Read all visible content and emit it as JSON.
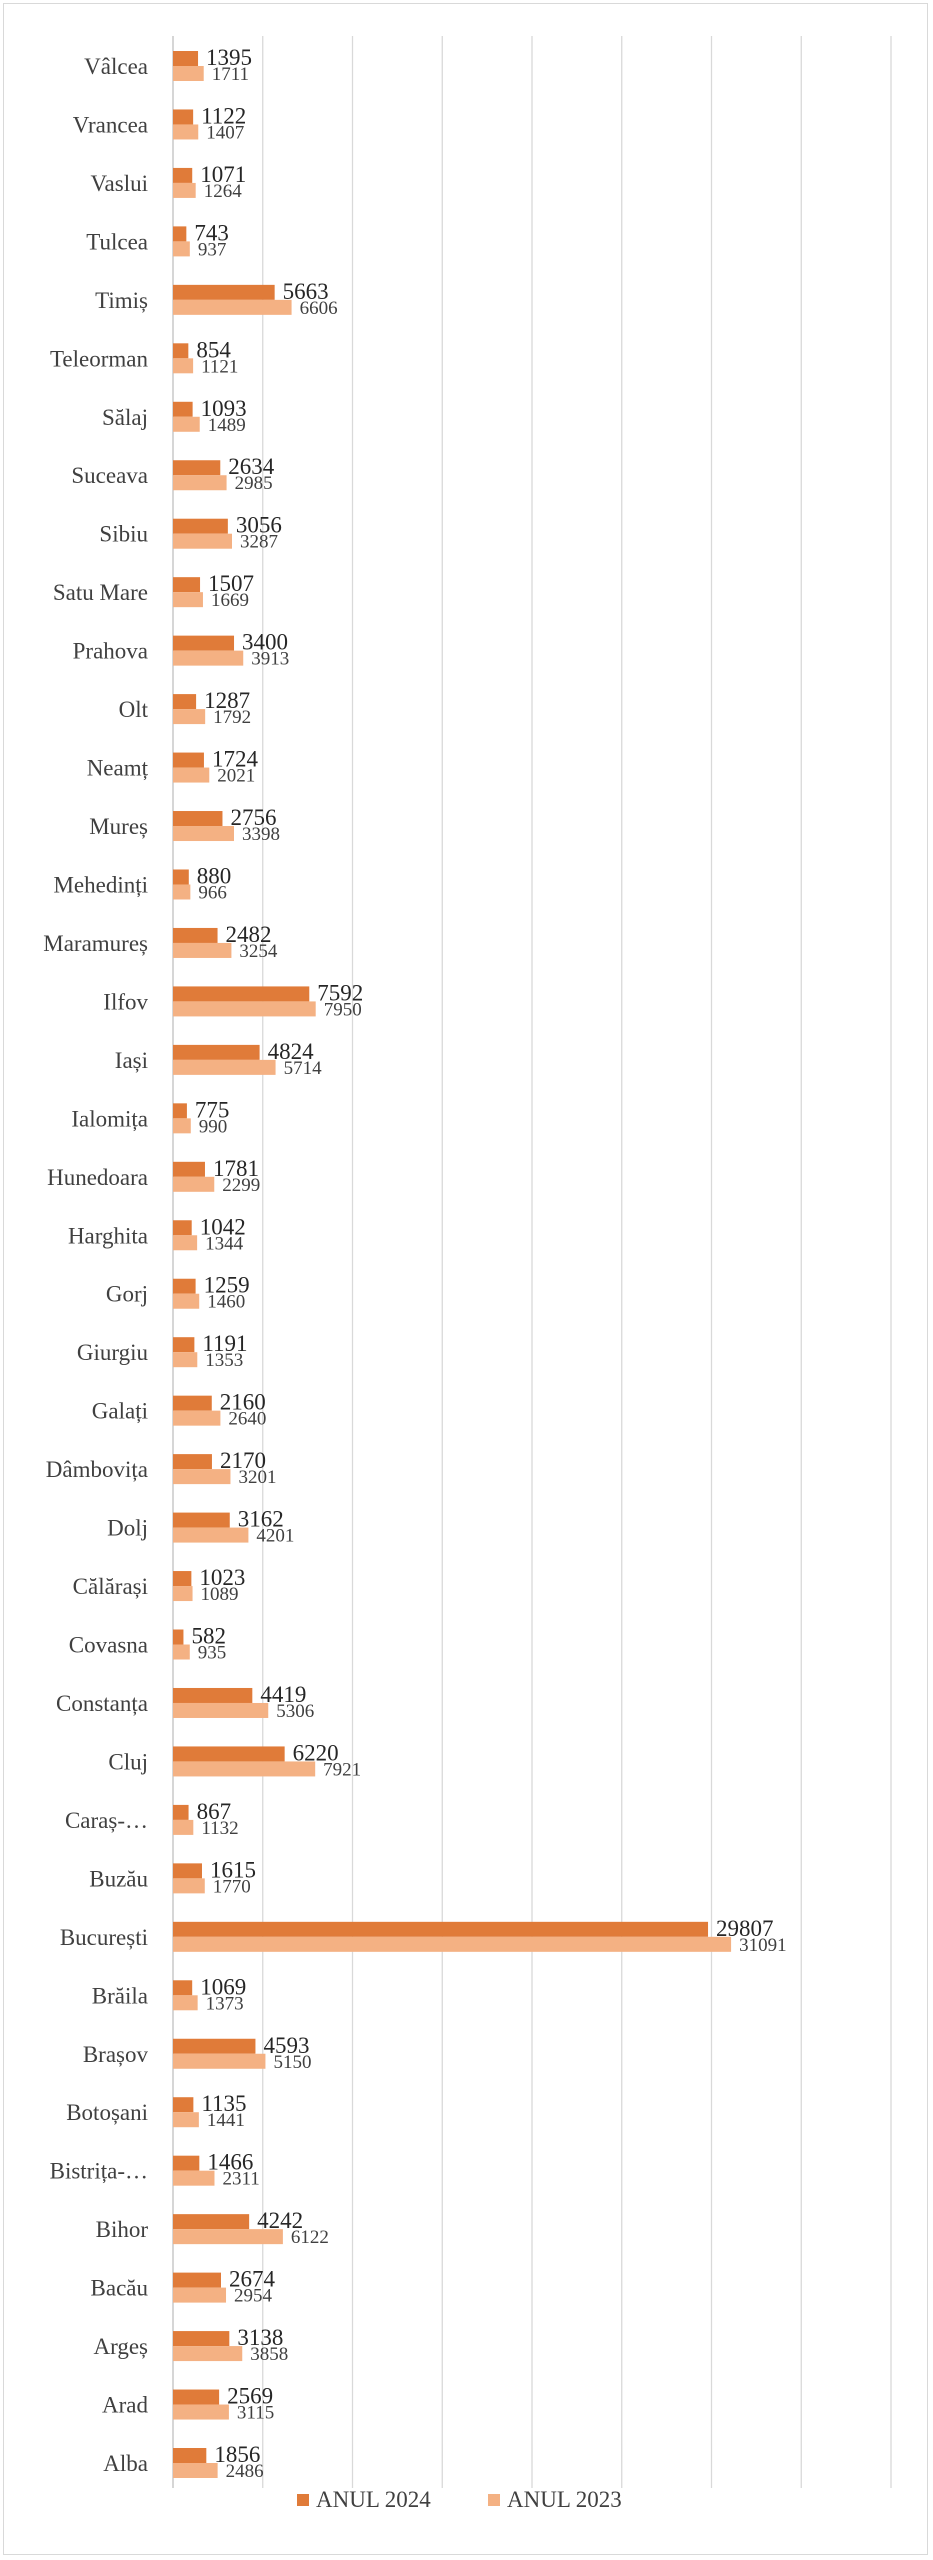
{
  "chart_data": {
    "type": "bar",
    "orientation": "horizontal",
    "categories": [
      "Alba",
      "Arad",
      "Argeș",
      "Bacău",
      "Bihor",
      "Bistrița-…",
      "Botoșani",
      "Brașov",
      "Brăila",
      "București",
      "Buzău",
      "Caraș-…",
      "Cluj",
      "Constanța",
      "Covasna",
      "Călărași",
      "Dolj",
      "Dâmbovița",
      "Galați",
      "Giurgiu",
      "Gorj",
      "Harghita",
      "Hunedoara",
      "Ialomița",
      "Iași",
      "Ilfov",
      "Maramureș",
      "Mehedinți",
      "Mureș",
      "Neamț",
      "Olt",
      "Prahova",
      "Satu Mare",
      "Sibiu",
      "Suceava",
      "Sălaj",
      "Teleorman",
      "Timiș",
      "Tulcea",
      "Vaslui",
      "Vrancea",
      "Vâlcea"
    ],
    "series": [
      {
        "name": "ANUL 2024",
        "color": "#e07b39",
        "values": [
          1856,
          2569,
          3138,
          2674,
          4242,
          1466,
          1135,
          4593,
          1069,
          29807,
          1615,
          867,
          6220,
          4419,
          582,
          1023,
          3162,
          2170,
          2160,
          1191,
          1259,
          1042,
          1781,
          775,
          4824,
          7592,
          2482,
          880,
          2756,
          1724,
          1287,
          3400,
          1507,
          3056,
          2634,
          1093,
          854,
          5663,
          743,
          1071,
          1122,
          1395
        ]
      },
      {
        "name": "ANUL 2023",
        "color": "#f4b183",
        "values": [
          2486,
          3115,
          3858,
          2954,
          6122,
          2311,
          1441,
          5150,
          1373,
          31091,
          1770,
          1132,
          7921,
          5306,
          935,
          1089,
          4201,
          3201,
          2640,
          1353,
          1460,
          1344,
          2299,
          990,
          5714,
          7950,
          3254,
          966,
          3398,
          2021,
          1792,
          3913,
          1669,
          3287,
          2985,
          1489,
          1121,
          6606,
          937,
          1264,
          1407,
          1711
        ]
      }
    ],
    "xlim": [
      0,
      40000
    ],
    "grid": true,
    "legend_position": "bottom"
  }
}
